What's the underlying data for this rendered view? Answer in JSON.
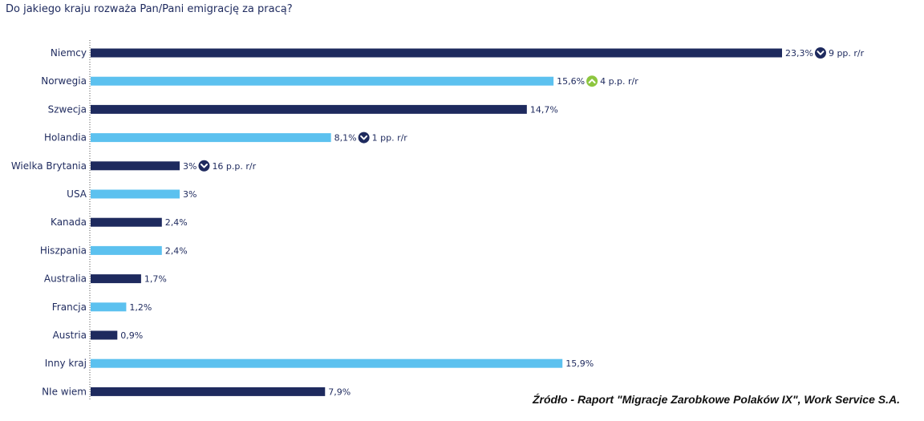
{
  "chart_data": {
    "type": "bar",
    "orientation": "horizontal",
    "title": "Do jakiego kraju rozważa Pan/Pani emigrację za pracą?",
    "categories": [
      "Niemcy",
      "Norwegia",
      "Szwecja",
      "Holandia",
      "Wielka Brytania",
      "USA",
      "Kanada",
      "Hiszpania",
      "Australia",
      "Francja",
      "Austria",
      "Inny kraj",
      "NIe wiem"
    ],
    "values": [
      23.3,
      15.6,
      14.7,
      8.1,
      3,
      3,
      2.4,
      2.4,
      1.7,
      1.2,
      0.9,
      15.9,
      7.9
    ],
    "value_labels": [
      "23,3%",
      "15,6%",
      "14,7%",
      "8,1%",
      "3%",
      "3%",
      "2,4%",
      "2,4%",
      "1,7%",
      "1,2%",
      "0,9%",
      "15,9%",
      "7,9%"
    ],
    "bar_colors": [
      "#1e2a5e",
      "#5cc1ef",
      "#1e2a5e",
      "#5cc1ef",
      "#1e2a5e",
      "#5cc1ef",
      "#1e2a5e",
      "#5cc1ef",
      "#1e2a5e",
      "#5cc1ef",
      "#1e2a5e",
      "#5cc1ef",
      "#1e2a5e"
    ],
    "changes": [
      {
        "category": "Niemcy",
        "direction": "down",
        "icon": "chevron-down-circle-icon",
        "text": "9 pp.  r/r",
        "color": "#1e2a5e"
      },
      {
        "category": "Norwegia",
        "direction": "up",
        "icon": "chevron-up-circle-icon",
        "text": "4 p.p. r/r",
        "color": "#8dc63f"
      },
      {
        "category": "Holandia",
        "direction": "down",
        "icon": "chevron-down-circle-icon",
        "text": "1 pp.  r/r",
        "color": "#1e2a5e"
      },
      {
        "category": "Wielka Brytania",
        "direction": "down",
        "icon": "chevron-down-circle-icon",
        "text": "16 p.p. r/r",
        "color": "#1e2a5e"
      }
    ],
    "xlim": [
      0,
      25
    ],
    "grid": false,
    "legend": "none"
  },
  "source": "Źródło - Raport \"Migracje Zarobkowe Polaków IX\", Work Service S.A."
}
